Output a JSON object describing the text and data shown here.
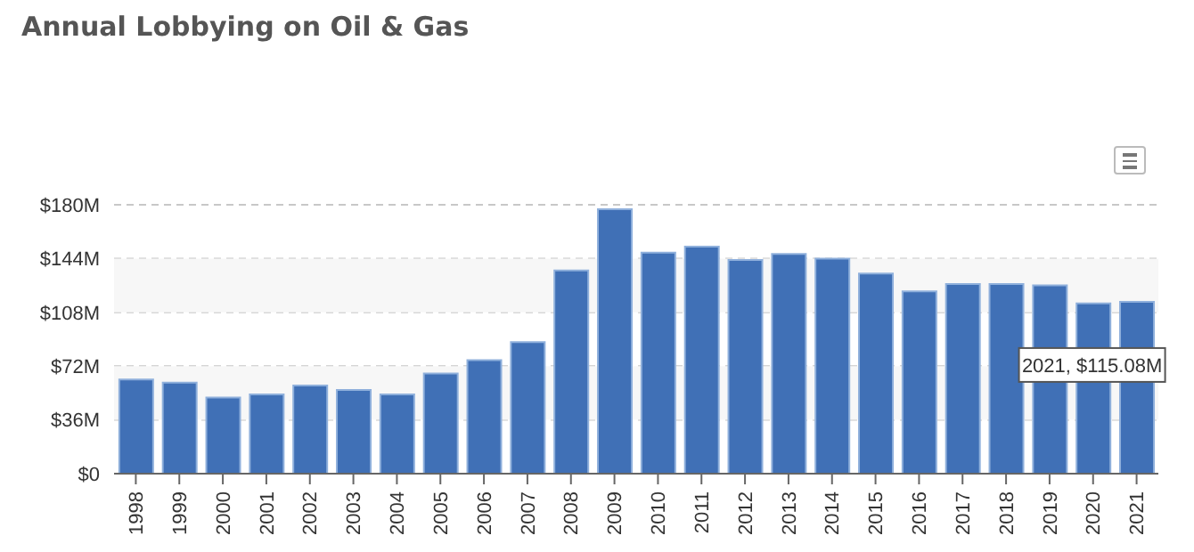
{
  "chart_data": {
    "type": "bar",
    "title": "Annual Lobbying on Oil & Gas",
    "categories": [
      "1998",
      "1999",
      "2000",
      "2001",
      "2002",
      "2003",
      "2004",
      "2005",
      "2006",
      "2007",
      "2008",
      "2009",
      "2010",
      "2011",
      "2012",
      "2013",
      "2014",
      "2015",
      "2016",
      "2017",
      "2018",
      "2019",
      "2020",
      "2021"
    ],
    "values": [
      63,
      61,
      51,
      53,
      59,
      56,
      53,
      67,
      76,
      88,
      136,
      177,
      148,
      152,
      143,
      147,
      144,
      134,
      122,
      127,
      127,
      126,
      114,
      115.08
    ],
    "color": "#4070b6",
    "ylim": [
      0,
      180
    ],
    "yticks": [
      {
        "value": 0,
        "label": "$0"
      },
      {
        "value": 36,
        "label": "$36M"
      },
      {
        "value": 72,
        "label": "$72M"
      },
      {
        "value": 108,
        "label": "$108M"
      },
      {
        "value": 144,
        "label": "$144M"
      },
      {
        "value": 180,
        "label": "$180M"
      }
    ],
    "grid": "y",
    "bands": [
      {
        "axis": "y",
        "from": 36,
        "to": 72,
        "color": "#f7f7f7"
      },
      {
        "axis": "y",
        "from": 108,
        "to": 144,
        "color": "#f7f7f7"
      }
    ],
    "annotations": [
      {
        "text": "2021, $115.08M",
        "x": "2021",
        "y": 115.08
      }
    ]
  }
}
